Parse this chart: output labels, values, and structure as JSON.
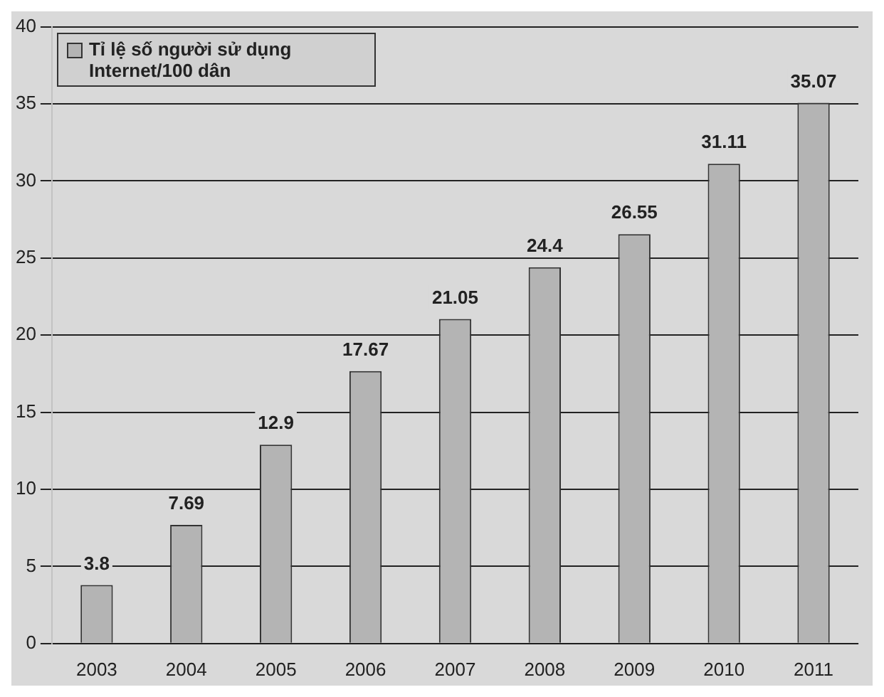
{
  "chart_data": {
    "type": "bar",
    "categories": [
      "2003",
      "2004",
      "2005",
      "2006",
      "2007",
      "2008",
      "2009",
      "2010",
      "2011"
    ],
    "series": [
      {
        "name": "Tỉ lệ số người sử dụng Internet/100 dân",
        "color": "#b4b4b4",
        "values": [
          3.8,
          7.69,
          12.9,
          17.67,
          21.05,
          24.4,
          26.55,
          31.11,
          35.07
        ]
      }
    ],
    "ylim": [
      0,
      40
    ],
    "yticks": [
      0,
      5,
      10,
      15,
      20,
      25,
      30,
      35,
      40
    ],
    "grid": "y",
    "legend": "top left",
    "data_labels": true
  }
}
